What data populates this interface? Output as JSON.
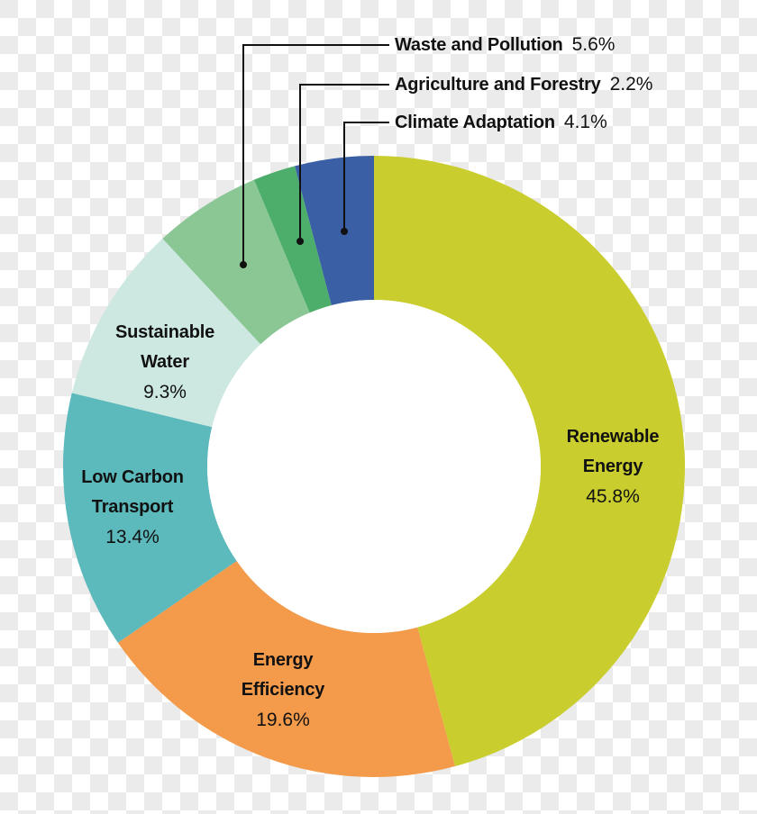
{
  "chart_data": {
    "type": "pie",
    "variant": "donut",
    "title": "",
    "start_angle_deg": 0,
    "direction": "clockwise",
    "center": [
      415,
      518
    ],
    "outer_radius": 345,
    "inner_radius": 185,
    "slices": [
      {
        "label": "Renewable Energy",
        "value": 45.8,
        "pct_label": "45.8%",
        "color": "#c9cd2e"
      },
      {
        "label": "Energy Efficiency",
        "value": 19.6,
        "pct_label": "19.6%",
        "color": "#f49b4b"
      },
      {
        "label": "Low Carbon Transport",
        "value": 13.4,
        "pct_label": "13.4%",
        "color": "#5cb9bc"
      },
      {
        "label": "Sustainable Water",
        "value": 9.3,
        "pct_label": "9.3%",
        "color": "#cde8e1"
      },
      {
        "label": "Waste and Pollution",
        "value": 5.6,
        "pct_label": "5.6%",
        "color": "#8bc795"
      },
      {
        "label": "Agriculture and Forestry",
        "value": 2.2,
        "pct_label": "2.2%",
        "color": "#4cae6a"
      },
      {
        "label": "Climate Adaptation",
        "value": 4.1,
        "pct_label": "4.1%",
        "color": "#3a5fa5"
      }
    ]
  },
  "labels": {
    "renewable": {
      "line1": "Renewable",
      "line2": "Energy",
      "pct": "45.8%"
    },
    "efficiency": {
      "line1": "Energy",
      "line2": "Efficiency",
      "pct": "19.6%"
    },
    "transport": {
      "line1": "Low Carbon",
      "line2": "Transport",
      "pct": "13.4%"
    },
    "water": {
      "line1": "Sustainable",
      "line2": "Water",
      "pct": "9.3%"
    }
  },
  "callouts": [
    {
      "name": "Waste and Pollution",
      "pct": "5.6%"
    },
    {
      "name": "Agriculture and Forestry",
      "pct": "2.2%"
    },
    {
      "name": "Climate Adaptation",
      "pct": "4.1%"
    }
  ]
}
